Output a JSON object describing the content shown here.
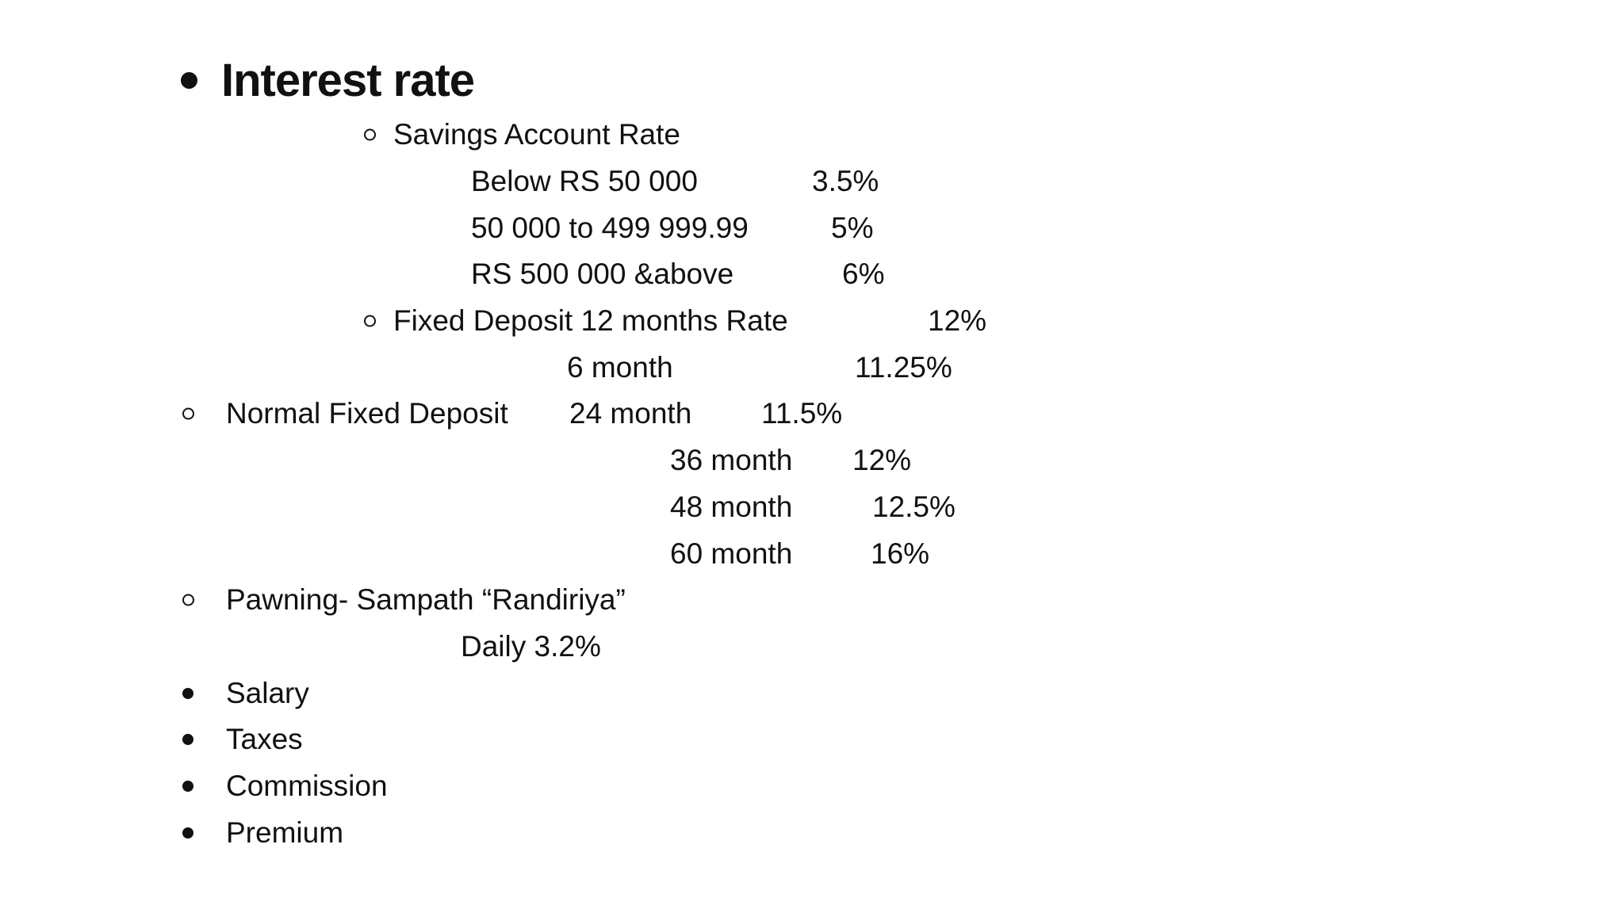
{
  "document": {
    "title": "Interest rate",
    "lines": [
      {
        "bullet": "circle",
        "label": "Savings Account Rate"
      },
      {
        "label": "Below RS 50 000",
        "value": "3.5%"
      },
      {
        "label": "50 000 to 499 999.99",
        "value": "5%"
      },
      {
        "label": "RS 500 000 &above",
        "value": "6%"
      },
      {
        "bullet": "circle",
        "label": "Fixed Deposit 12 months Rate",
        "value": "12%"
      },
      {
        "label": "6 month",
        "value": "11.25%"
      },
      {
        "bullet": "circle",
        "label": "Normal Fixed Deposit",
        "mid": "24 month",
        "value": "11.5%"
      },
      {
        "label": "36 month",
        "value": "12%"
      },
      {
        "label": "48 month",
        "value": "12.5%"
      },
      {
        "label": "60 month",
        "value": "16%"
      },
      {
        "bullet": "circle",
        "label": "Pawning- Sampath “Randiriya”"
      },
      {
        "label": "Daily 3.2%"
      },
      {
        "bullet": "disc",
        "label": "Salary"
      },
      {
        "bullet": "disc",
        "label": "Taxes"
      },
      {
        "bullet": "disc",
        "label": "Commission"
      },
      {
        "bullet": "disc",
        "label": "Premium"
      }
    ],
    "colors": {
      "background": "#ffffff",
      "text": "#111111"
    }
  }
}
